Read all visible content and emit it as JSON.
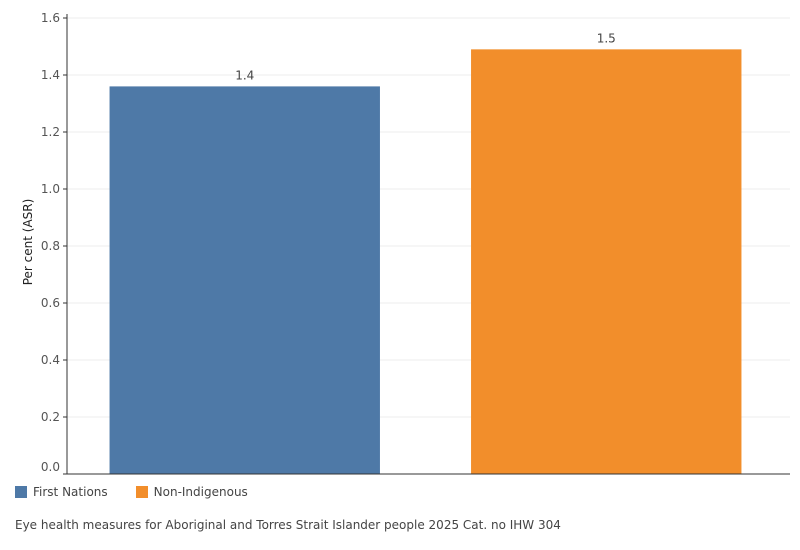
{
  "chart_data": {
    "type": "bar",
    "categories": [
      "First Nations",
      "Non-Indigenous"
    ],
    "values": [
      1.36,
      1.49
    ],
    "data_labels": [
      "1.4",
      "1.5"
    ],
    "colors": [
      "#4e79a7",
      "#f28e2b"
    ],
    "title": "",
    "xlabel": "",
    "ylabel": "Per cent (ASR)",
    "ylim": [
      0,
      1.6
    ],
    "yticks": [
      0.0,
      0.2,
      0.4,
      0.6,
      0.8,
      1.0,
      1.2,
      1.4,
      1.6
    ],
    "grid": true,
    "legend": "bottom-left"
  },
  "legend": {
    "items": [
      {
        "label": "First Nations",
        "color": "#4e79a7"
      },
      {
        "label": "Non-Indigenous",
        "color": "#f28e2b"
      }
    ]
  },
  "footer": {
    "source": "Eye health measures for Aboriginal and Torres Strait Islander people 2025 Cat. no IHW 304"
  }
}
